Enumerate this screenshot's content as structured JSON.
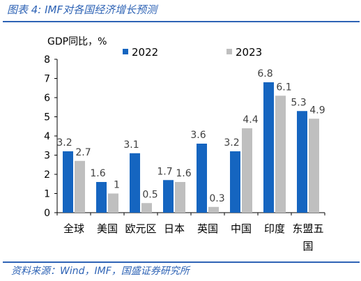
{
  "caption": "图表 4:  IMF对各国经济增长预测",
  "source": "资料来源：Wind，IMF，国盛证券研究所",
  "chart_data": {
    "type": "bar",
    "ylabel": "GDP同比，%",
    "ylim": [
      0,
      8
    ],
    "yticks": [
      "0",
      "1",
      "2",
      "3",
      "4",
      "5",
      "6",
      "7",
      "8"
    ],
    "grid": false,
    "legend": "top-center",
    "categories": [
      "全球",
      "美国",
      "欧元区",
      "日本",
      "英国",
      "中国",
      "印度",
      "东盟五国"
    ],
    "series": [
      {
        "name": "2022",
        "color": "#1565C0",
        "values": [
          3.2,
          1.6,
          3.1,
          1.7,
          3.6,
          3.2,
          6.8,
          5.3
        ],
        "labels": [
          "3.2",
          "1.6",
          "3.1",
          "1.7",
          "3.6",
          "3.2",
          "6.8",
          "5.3"
        ]
      },
      {
        "name": "2023",
        "color": "#BFBFBF",
        "values": [
          2.7,
          1.0,
          0.5,
          1.6,
          0.3,
          4.4,
          6.1,
          4.9
        ],
        "labels": [
          "2.7",
          "1",
          "0.5",
          "1.6",
          "0.3",
          "4.4",
          "6.1",
          "4.9"
        ]
      }
    ]
  }
}
